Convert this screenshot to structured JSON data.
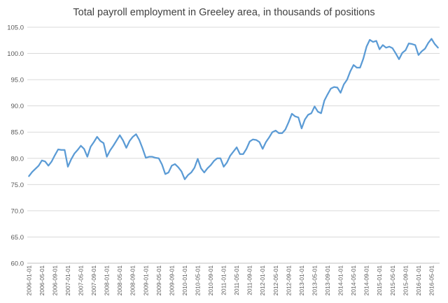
{
  "chart_data": {
    "type": "line",
    "title": "Total payroll employment in Greeley area, in thousands of positions",
    "xlabel": "",
    "ylabel": "",
    "ylim": [
      60.0,
      105.0
    ],
    "yticks": [
      "60.0",
      "65.0",
      "70.0",
      "75.0",
      "80.0",
      "85.0",
      "90.0",
      "95.0",
      "100.0",
      "105.0"
    ],
    "xtick_labels": [
      "2006-01-01",
      "2006-05-01",
      "2006-09-01",
      "2007-01-01",
      "2007-05-01",
      "2007-09-01",
      "2008-01-01",
      "2008-05-01",
      "2008-09-01",
      "2009-01-01",
      "2009-05-01",
      "2009-09-01",
      "2010-01-01",
      "2010-05-01",
      "2010-09-01",
      "2011-01-01",
      "2011-05-01",
      "2011-09-01",
      "2012-01-01",
      "2012-05-01",
      "2012-09-01",
      "2013-01-01",
      "2013-05-01",
      "2013-09-01",
      "2014-01-01",
      "2014-05-01",
      "2014-09-01",
      "2015-01-01",
      "2015-05-01",
      "2015-09-01",
      "2016-01-01",
      "2016-05-01"
    ],
    "grid": true,
    "line_color": "#5b9bd5",
    "series": [
      {
        "name": "Total payroll employment",
        "x_start": "2006-01",
        "values": [
          76.6,
          77.4,
          78.0,
          78.6,
          79.6,
          79.4,
          78.6,
          79.4,
          80.6,
          81.7,
          81.6,
          81.6,
          78.4,
          79.8,
          80.9,
          81.6,
          82.4,
          81.8,
          80.3,
          82.2,
          83.1,
          84.1,
          83.3,
          82.9,
          80.3,
          81.5,
          82.4,
          83.4,
          84.4,
          83.4,
          82.0,
          83.3,
          84.1,
          84.6,
          83.5,
          81.9,
          80.1,
          80.3,
          80.3,
          80.1,
          80.0,
          78.8,
          77.0,
          77.3,
          78.6,
          78.9,
          78.3,
          77.5,
          76.0,
          76.8,
          77.3,
          78.2,
          79.9,
          78.1,
          77.3,
          78.1,
          78.7,
          79.5,
          80.0,
          80.0,
          78.4,
          79.2,
          80.5,
          81.3,
          82.1,
          80.8,
          80.8,
          81.8,
          83.2,
          83.6,
          83.5,
          83.1,
          81.8,
          83.1,
          84.0,
          85.0,
          85.3,
          84.8,
          84.8,
          85.5,
          86.9,
          88.5,
          88.0,
          87.8,
          85.7,
          87.4,
          88.3,
          88.6,
          89.9,
          88.9,
          88.6,
          91.0,
          92.2,
          93.3,
          93.6,
          93.5,
          92.5,
          94.1,
          95.0,
          96.6,
          97.8,
          97.3,
          97.3,
          99.0,
          101.3,
          102.6,
          102.2,
          102.4,
          100.8,
          101.6,
          101.1,
          101.3,
          101.0,
          100.0,
          98.9,
          100.1,
          100.6,
          101.9,
          101.8,
          101.6,
          99.7,
          100.4,
          100.9,
          102.0,
          102.8,
          101.8,
          101.1
        ]
      }
    ]
  }
}
